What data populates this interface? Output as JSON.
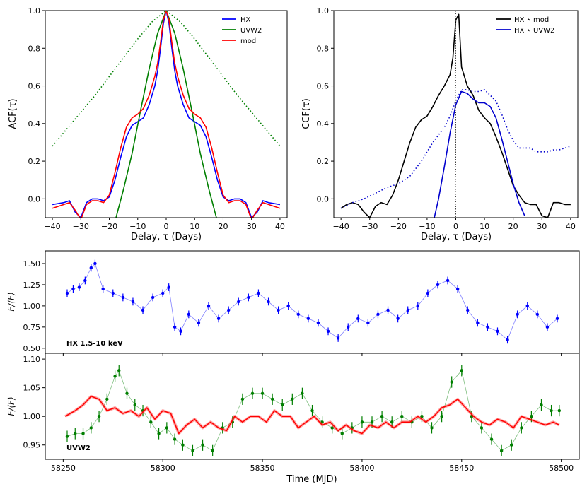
{
  "chart_data": [
    {
      "id": "acf",
      "type": "line",
      "xlabel": "Delay, τ   (Days)",
      "ylabel": "ACF(τ)",
      "xlim": [
        -42.5,
        42.5
      ],
      "ylim": [
        -0.1,
        1.0
      ],
      "xticks": [
        -40,
        -30,
        -20,
        -10,
        0,
        10,
        20,
        30,
        40
      ],
      "yticks": [
        0.0,
        0.2,
        0.4,
        0.6,
        0.8,
        1.0
      ],
      "ytick_labels": [
        "0.0",
        "0.2",
        "0.4",
        "0.6",
        "0.8",
        "1.0"
      ],
      "legend": {
        "position": "top-right",
        "entries": [
          "HX",
          "UVW2",
          "mod"
        ]
      },
      "series": [
        {
          "name": "HX",
          "color": "#0000ff",
          "style": "solid",
          "x": [
            -40,
            -36,
            -34,
            -32,
            -30,
            -28,
            -26,
            -24,
            -22,
            -20,
            -18,
            -16,
            -14,
            -12,
            -10,
            -8,
            -6,
            -4,
            -3,
            -2,
            -1,
            0,
            1,
            2,
            3,
            4,
            6,
            8,
            10,
            12,
            14,
            16,
            18,
            20,
            22,
            24,
            26,
            28,
            30,
            32,
            34,
            36,
            40
          ],
          "y": [
            -0.03,
            -0.02,
            -0.01,
            -0.07,
            -0.1,
            -0.02,
            0.0,
            0.0,
            -0.01,
            0.01,
            0.1,
            0.22,
            0.33,
            0.39,
            0.41,
            0.43,
            0.5,
            0.6,
            0.68,
            0.8,
            0.93,
            1.0,
            0.93,
            0.8,
            0.68,
            0.6,
            0.5,
            0.43,
            0.41,
            0.39,
            0.33,
            0.22,
            0.1,
            0.01,
            -0.01,
            0.0,
            0.0,
            -0.02,
            -0.1,
            -0.07,
            -0.01,
            -0.02,
            -0.03
          ]
        },
        {
          "name": "UVW2",
          "color": "#007f00",
          "style": "solid",
          "x": [
            -18,
            -15,
            -12,
            -9,
            -6,
            -3,
            0,
            3,
            6,
            9,
            12,
            15,
            18
          ],
          "y": [
            -0.12,
            0.05,
            0.24,
            0.47,
            0.69,
            0.88,
            1.0,
            0.88,
            0.69,
            0.47,
            0.24,
            0.05,
            -0.12
          ]
        },
        {
          "name": "mod",
          "color": "#ff0000",
          "style": "solid",
          "x": [
            -40,
            -36,
            -34,
            -32,
            -30,
            -28,
            -26,
            -24,
            -22,
            -20,
            -18,
            -16,
            -14,
            -12,
            -10,
            -8,
            -6,
            -4,
            -3,
            -2,
            -1,
            0,
            1,
            2,
            3,
            4,
            6,
            8,
            10,
            12,
            14,
            16,
            18,
            20,
            22,
            24,
            26,
            28,
            30,
            32,
            34,
            36,
            40
          ],
          "y": [
            -0.05,
            -0.03,
            -0.02,
            -0.06,
            -0.11,
            -0.03,
            -0.01,
            -0.01,
            -0.02,
            0.02,
            0.14,
            0.27,
            0.38,
            0.43,
            0.45,
            0.48,
            0.55,
            0.65,
            0.72,
            0.83,
            0.95,
            1.0,
            0.95,
            0.83,
            0.72,
            0.65,
            0.55,
            0.48,
            0.45,
            0.43,
            0.38,
            0.27,
            0.14,
            0.02,
            -0.02,
            -0.01,
            -0.01,
            -0.03,
            -0.11,
            -0.06,
            -0.02,
            -0.03,
            -0.05
          ]
        },
        {
          "name": "UVW2 (dotted)",
          "color": "#007f00",
          "style": "dotted",
          "x": [
            -40,
            -35,
            -30,
            -25,
            -20,
            -15,
            -10,
            -5,
            0,
            5,
            10,
            15,
            20,
            25,
            30,
            35,
            40
          ],
          "y": [
            0.28,
            0.37,
            0.46,
            0.55,
            0.65,
            0.75,
            0.85,
            0.94,
            1.0,
            0.94,
            0.85,
            0.75,
            0.65,
            0.55,
            0.46,
            0.37,
            0.28
          ]
        }
      ]
    },
    {
      "id": "ccf",
      "type": "line",
      "xlabel": "Delay, τ   (Days)",
      "ylabel": "CCF(τ)",
      "xlim": [
        -42.5,
        42.5
      ],
      "ylim": [
        -0.1,
        1.0
      ],
      "xticks": [
        -40,
        -30,
        -20,
        -10,
        0,
        10,
        20,
        30,
        40
      ],
      "yticks": [
        0.0,
        0.2,
        0.4,
        0.6,
        0.8,
        1.0
      ],
      "ytick_labels": [
        "0.0",
        "0.2",
        "0.4",
        "0.6",
        "0.8",
        "1.0"
      ],
      "vline_x": 0,
      "legend": {
        "position": "top-right",
        "entries": [
          "HX ⋆ mod",
          "HX ⋆ UVW2"
        ]
      },
      "series": [
        {
          "name": "HX ⋆ mod",
          "color": "#000000",
          "style": "solid",
          "x": [
            -40,
            -38,
            -36,
            -34,
            -32,
            -30,
            -28,
            -26,
            -24,
            -22,
            -20,
            -18,
            -16,
            -14,
            -12,
            -10,
            -8,
            -6,
            -4,
            -2,
            -1,
            0,
            1,
            2,
            4,
            6,
            8,
            10,
            12,
            14,
            16,
            18,
            20,
            22,
            24,
            26,
            28,
            30,
            32,
            34,
            36,
            38,
            40
          ],
          "y": [
            -0.05,
            -0.03,
            -0.02,
            -0.03,
            -0.07,
            -0.1,
            -0.04,
            -0.02,
            -0.03,
            0.02,
            0.1,
            0.2,
            0.3,
            0.38,
            0.42,
            0.44,
            0.49,
            0.55,
            0.6,
            0.66,
            0.75,
            0.95,
            0.98,
            0.7,
            0.6,
            0.55,
            0.47,
            0.43,
            0.4,
            0.33,
            0.25,
            0.16,
            0.07,
            0.02,
            -0.02,
            -0.03,
            -0.03,
            -0.09,
            -0.1,
            -0.02,
            -0.02,
            -0.03,
            -0.03
          ]
        },
        {
          "name": "HX ⋆ UVW2",
          "color": "#0000cd",
          "style": "solid",
          "x": [
            -7.5,
            -6,
            -4,
            -2,
            0,
            2,
            4,
            6,
            8,
            10,
            12,
            14,
            16,
            18,
            20,
            22,
            24
          ],
          "y": [
            -0.1,
            0.0,
            0.17,
            0.35,
            0.5,
            0.57,
            0.56,
            0.53,
            0.51,
            0.51,
            0.49,
            0.43,
            0.32,
            0.2,
            0.08,
            -0.02,
            -0.09
          ]
        },
        {
          "name": "HX ⋆ UVW2 (dotted)",
          "color": "#0000cd",
          "style": "dotted",
          "x": [
            -40,
            -36,
            -32,
            -28,
            -24,
            -20,
            -16,
            -12,
            -8,
            -4,
            -2,
            0,
            2,
            4,
            6,
            8,
            10,
            12,
            14,
            16,
            18,
            20,
            22,
            24,
            26,
            28,
            30,
            32,
            34,
            36,
            38,
            40
          ],
          "y": [
            -0.05,
            -0.02,
            0.0,
            0.03,
            0.06,
            0.08,
            0.12,
            0.2,
            0.3,
            0.38,
            0.44,
            0.52,
            0.58,
            0.58,
            0.57,
            0.57,
            0.58,
            0.55,
            0.52,
            0.45,
            0.37,
            0.31,
            0.27,
            0.27,
            0.27,
            0.25,
            0.25,
            0.25,
            0.26,
            0.26,
            0.27,
            0.28
          ]
        }
      ]
    },
    {
      "id": "hx_lc",
      "type": "scatter",
      "ylabel": "F/⟨F⟩",
      "annotation": "HX  1.5-10 keV",
      "xlim": [
        58241,
        58509
      ],
      "ylim": [
        0.44,
        1.65
      ],
      "yticks": [
        0.5,
        0.75,
        1.0,
        1.25,
        1.5
      ],
      "ytick_labels": [
        "0.50",
        "0.75",
        "1.00",
        "1.25",
        "1.50"
      ],
      "xticks": [
        58250,
        58300,
        58350,
        58400,
        58450,
        58500
      ],
      "series": [
        {
          "name": "HX",
          "color": "#0000ff",
          "error": 0.045,
          "x": [
            58252,
            58255,
            58258,
            58261,
            58264,
            58266,
            58270,
            58275,
            58280,
            58285,
            58290,
            58295,
            58300,
            58303,
            58306,
            58309,
            58313,
            58318,
            58323,
            58328,
            58333,
            58338,
            58343,
            58348,
            58353,
            58358,
            58363,
            58368,
            58373,
            58378,
            58383,
            58388,
            58393,
            58398,
            58403,
            58408,
            58413,
            58418,
            58423,
            58428,
            58433,
            58438,
            58443,
            58448,
            58453,
            58458,
            58463,
            58468,
            58473,
            58478,
            58483,
            58488,
            58493,
            58498
          ],
          "y": [
            1.15,
            1.2,
            1.22,
            1.3,
            1.45,
            1.5,
            1.2,
            1.15,
            1.1,
            1.05,
            0.95,
            1.1,
            1.15,
            1.22,
            0.75,
            0.7,
            0.9,
            0.8,
            1.0,
            0.85,
            0.95,
            1.05,
            1.1,
            1.15,
            1.05,
            0.95,
            1.0,
            0.9,
            0.85,
            0.8,
            0.7,
            0.62,
            0.75,
            0.85,
            0.8,
            0.9,
            0.95,
            0.85,
            0.95,
            1.0,
            1.15,
            1.25,
            1.3,
            1.2,
            0.95,
            0.8,
            0.75,
            0.7,
            0.6,
            0.9,
            1.0,
            0.9,
            0.75,
            0.85
          ]
        }
      ]
    },
    {
      "id": "uvw2_lc",
      "type": "line",
      "ylabel": "F/⟨F⟩",
      "xlabel": "Time   (MJD)",
      "annotation": "UVW2",
      "xlim": [
        58241,
        58509
      ],
      "ylim": [
        0.925,
        1.11
      ],
      "yticks": [
        0.95,
        1.0,
        1.05,
        1.1
      ],
      "ytick_labels": [
        "0.95",
        "1.00",
        "1.05",
        "1.10"
      ],
      "xticks": [
        58250,
        58300,
        58350,
        58400,
        58450,
        58500
      ],
      "series": [
        {
          "name": "UVW2",
          "color": "#007f00",
          "error": 0.01,
          "x": [
            58252,
            58256,
            58260,
            58264,
            58268,
            58272,
            58276,
            58278,
            58282,
            58286,
            58290,
            58294,
            58298,
            58302,
            58306,
            58310,
            58315,
            58320,
            58325,
            58330,
            58335,
            58340,
            58345,
            58350,
            58355,
            58360,
            58365,
            58370,
            58375,
            58380,
            58385,
            58390,
            58395,
            58400,
            58405,
            58410,
            58415,
            58420,
            58425,
            58430,
            58435,
            58440,
            58445,
            58450,
            58455,
            58460,
            58465,
            58470,
            58475,
            58480,
            58485,
            58490,
            58495,
            58499
          ],
          "y": [
            0.965,
            0.97,
            0.97,
            0.98,
            1.0,
            1.03,
            1.07,
            1.08,
            1.04,
            1.02,
            1.01,
            0.99,
            0.97,
            0.98,
            0.96,
            0.95,
            0.94,
            0.95,
            0.94,
            0.98,
            0.99,
            1.03,
            1.04,
            1.04,
            1.03,
            1.02,
            1.03,
            1.04,
            1.01,
            0.99,
            0.98,
            0.97,
            0.98,
            0.99,
            0.99,
            1.0,
            0.99,
            1.0,
            0.99,
            1.0,
            0.98,
            1.0,
            1.06,
            1.08,
            1.0,
            0.98,
            0.96,
            0.94,
            0.95,
            0.98,
            1.0,
            1.02,
            1.01,
            1.01
          ]
        },
        {
          "name": "mod",
          "color": "#ff0000",
          "x": [
            58251,
            58256,
            58260,
            58264,
            58268,
            58272,
            58276,
            58280,
            58284,
            58288,
            58292,
            58296,
            58300,
            58304,
            58308,
            58312,
            58316,
            58320,
            58324,
            58328,
            58332,
            58336,
            58340,
            58344,
            58348,
            58352,
            58356,
            58360,
            58364,
            58368,
            58372,
            58376,
            58380,
            58384,
            58388,
            58392,
            58396,
            58400,
            58404,
            58408,
            58412,
            58416,
            58420,
            58424,
            58428,
            58432,
            58436,
            58440,
            58444,
            58448,
            58452,
            58456,
            58460,
            58464,
            58468,
            58472,
            58476,
            58480,
            58484,
            58488,
            58492,
            58496,
            58499
          ],
          "y": [
            1.0,
            1.01,
            1.02,
            1.035,
            1.03,
            1.01,
            1.015,
            1.005,
            1.01,
            1.0,
            1.015,
            0.995,
            1.01,
            1.005,
            0.97,
            0.985,
            0.995,
            0.98,
            0.99,
            0.98,
            0.975,
            1.0,
            0.99,
            1.0,
            1.0,
            0.99,
            1.01,
            1.0,
            1.0,
            0.98,
            0.99,
            1.0,
            0.985,
            0.99,
            0.975,
            0.985,
            0.975,
            0.97,
            0.985,
            0.98,
            0.99,
            0.98,
            0.99,
            0.99,
            1.0,
            0.99,
            1.0,
            1.015,
            1.02,
            1.03,
            1.015,
            1.0,
            0.99,
            0.985,
            0.995,
            0.99,
            0.98,
            1.0,
            0.995,
            0.99,
            0.985,
            0.99,
            0.985
          ]
        }
      ]
    }
  ]
}
